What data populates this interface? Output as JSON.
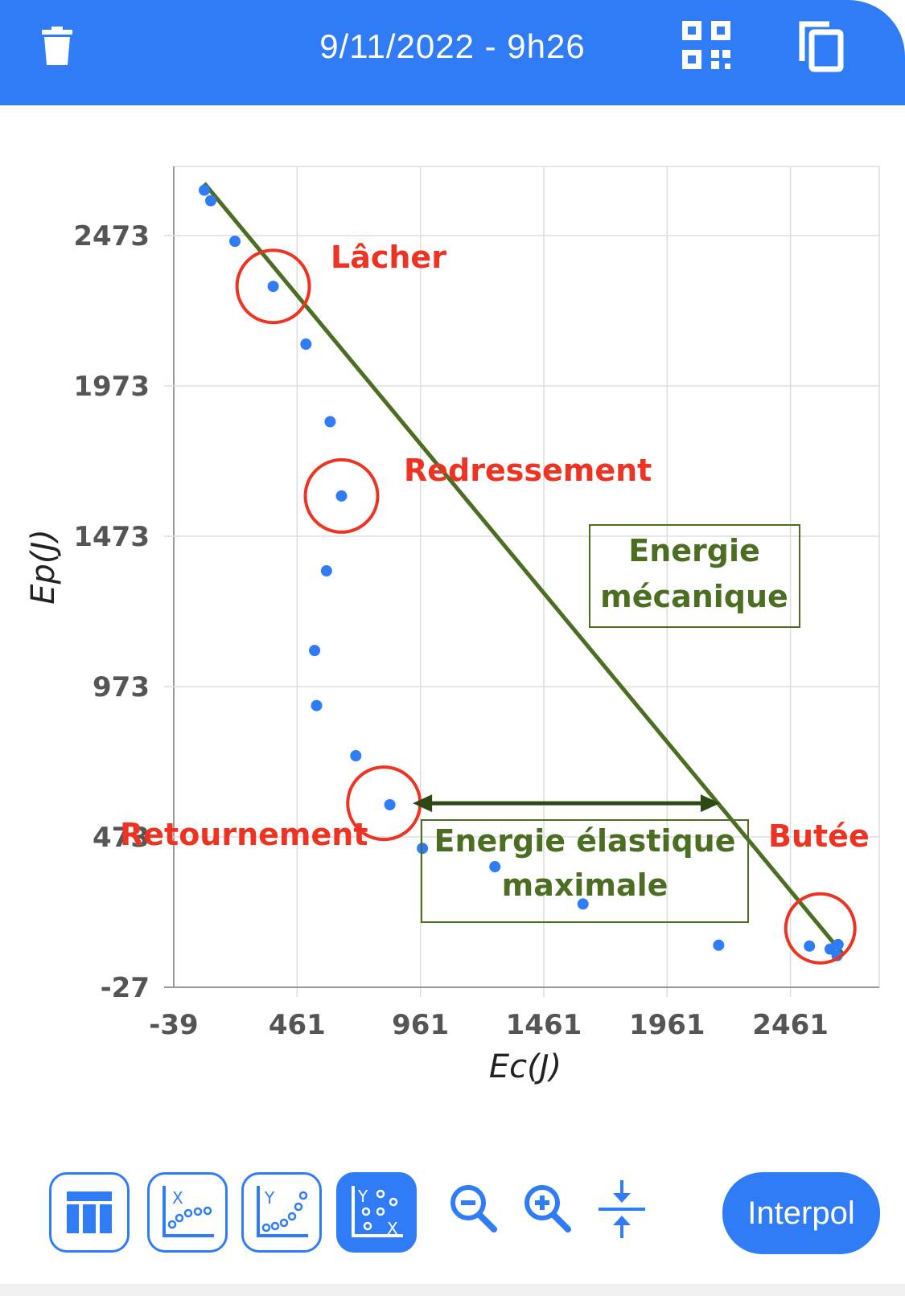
{
  "header": {
    "title": "9/11/2022 - 9h26",
    "delete_icon": "trash-icon",
    "qr_icon": "qr-code-icon",
    "copy_icon": "copy-icon",
    "color": "#2f7cf6"
  },
  "chart_data": {
    "type": "scatter",
    "xlabel": "Ec(J)",
    "ylabel": "Ep(J)",
    "xlim": [
      -39,
      2821
    ],
    "ylim": [
      -27,
      2703
    ],
    "x_ticks": [
      "-39",
      "461",
      "961",
      "1461",
      "1961",
      "2461"
    ],
    "y_ticks": [
      "-27",
      "473",
      "973",
      "1473",
      "1973",
      "2473"
    ],
    "grid": true,
    "point_color": "#2f7cf6",
    "points": [
      {
        "x": 85,
        "y": 2624
      },
      {
        "x": 111,
        "y": 2589
      },
      {
        "x": 209,
        "y": 2454
      },
      {
        "x": 364,
        "y": 2304
      },
      {
        "x": 497,
        "y": 2112
      },
      {
        "x": 595,
        "y": 1854
      },
      {
        "x": 641,
        "y": 1607
      },
      {
        "x": 580,
        "y": 1358
      },
      {
        "x": 532,
        "y": 1093
      },
      {
        "x": 540,
        "y": 910
      },
      {
        "x": 699,
        "y": 743
      },
      {
        "x": 837,
        "y": 580
      },
      {
        "x": 969,
        "y": 435
      },
      {
        "x": 1263,
        "y": 374
      },
      {
        "x": 1620,
        "y": 250
      },
      {
        "x": 2170,
        "y": 113
      },
      {
        "x": 2538,
        "y": 110
      },
      {
        "x": 2622,
        "y": 100
      },
      {
        "x": 2650,
        "y": 78
      },
      {
        "x": 2654,
        "y": 115
      }
    ],
    "lines": [
      {
        "name": "",
        "color": "#4b6e23",
        "points": [
          {
            "x": 85,
            "y": 2647
          },
          {
            "x": 2672,
            "y": 85
          }
        ]
      }
    ],
    "annotations": [
      {
        "id": "lacher",
        "text": "Lâcher",
        "color": "#ee3322",
        "circle_at": {
          "x": 364,
          "y": 2304
        }
      },
      {
        "id": "redressement",
        "text": "Redressement",
        "color": "#ee3322",
        "circle_at": {
          "x": 641,
          "y": 1607
        }
      },
      {
        "id": "retournement",
        "text": "Retournement",
        "color": "#ee3322",
        "circle_at": {
          "x": 813,
          "y": 585
        }
      },
      {
        "id": "butee",
        "text": "Butée",
        "color": "#ee3322",
        "circle_at": {
          "x": 2582,
          "y": 169
        }
      },
      {
        "id": "energie_meca",
        "text_lines": [
          "Energie",
          "mécanique"
        ],
        "color": "#4b6e23"
      },
      {
        "id": "energie_elast",
        "text_lines": [
          "Energie élastique",
          "maximale"
        ],
        "color": "#4b6e23",
        "arrow": {
          "x1": 930,
          "x2": 2175,
          "y": 585
        }
      }
    ]
  },
  "toolbar": {
    "items": [
      {
        "name": "table-view-icon"
      },
      {
        "name": "x-series-icon"
      },
      {
        "name": "y-series-icon"
      },
      {
        "name": "xy-scatter-icon",
        "active": true
      },
      {
        "name": "zoom-out-icon"
      },
      {
        "name": "zoom-in-icon"
      },
      {
        "name": "fit-vertical-icon"
      }
    ],
    "interpol_label": "Interpol"
  }
}
